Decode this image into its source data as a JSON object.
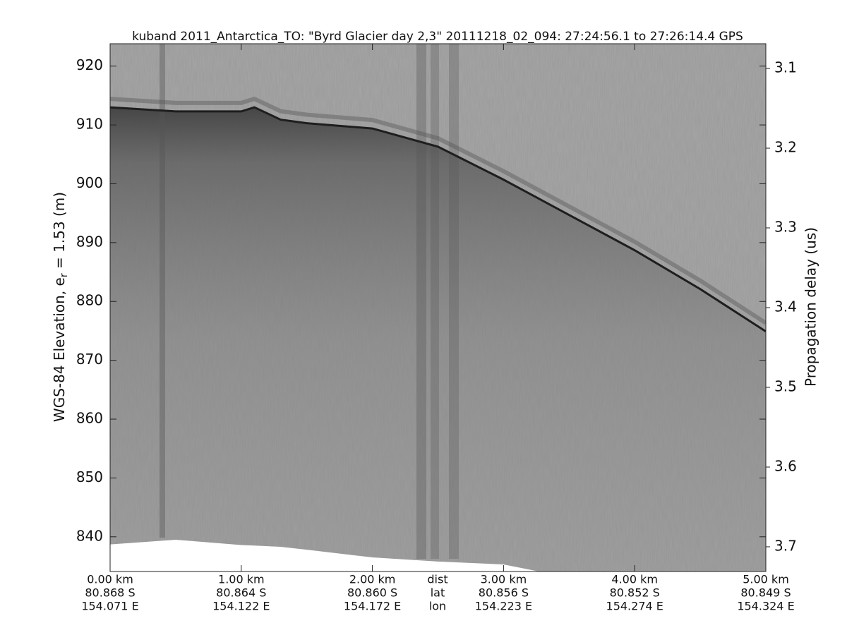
{
  "chart_data": {
    "type": "echogram",
    "title": "kuband 2011_Antarctica_TO: \"Byrd Glacier day 2,3\"  20111218_02_094: 27:24:56.1 to 27:26:14.4 GPS",
    "ylabel": [
      "WGS-84 Elevation, e",
      "r",
      " = 1.53 (m)"
    ],
    "y2label": "Propagation delay (us)",
    "xlim": [
      0,
      5
    ],
    "xticks": [
      {
        "value": 0,
        "label": "0.00 km"
      },
      {
        "value": 1,
        "label": "1.00 km"
      },
      {
        "value": 2,
        "label": "2.00 km"
      },
      {
        "value": 3,
        "label": "3.00 km"
      },
      {
        "value": 4,
        "label": "4.00 km"
      },
      {
        "value": 5,
        "label": "5.00 km"
      }
    ],
    "lat_labels": [
      "80.868 S",
      "80.864 S",
      "80.860 S",
      "80.856 S",
      "80.852 S",
      "80.849 S"
    ],
    "lon_labels": [
      "154.071 E",
      "154.122 E",
      "154.172 E",
      "154.223 E",
      "154.274 E",
      "154.324 E"
    ],
    "row_labels": [
      "dist",
      "lat",
      "lon"
    ],
    "ylim": [
      834.1,
      923.8
    ],
    "yticks": [
      840,
      850,
      860,
      870,
      880,
      890,
      900,
      910,
      920
    ],
    "y2lim": [
      3.731,
      3.069
    ],
    "y2ticks": [
      3.1,
      3.2,
      3.3,
      3.4,
      3.5,
      3.6,
      3.7
    ],
    "x": [
      0,
      0.5,
      1.0,
      1.1,
      1.3,
      1.5,
      2.0,
      2.5,
      3.0,
      3.5,
      4.0,
      4.5,
      5.0
    ],
    "series": [
      {
        "color": "#1e1e1e",
        "values": [
          913.0,
          912.3,
          912.3,
          913.0,
          910.9,
          910.3,
          909.4,
          906.3,
          900.7,
          894.7,
          888.7,
          882.1,
          874.9
        ]
      },
      {
        "color": "#ffffff",
        "values": [
          838.7,
          839.5,
          838.6,
          838.5,
          838.3,
          837.8,
          836.5,
          835.8,
          835.3,
          null,
          null,
          null,
          null
        ]
      }
    ]
  }
}
